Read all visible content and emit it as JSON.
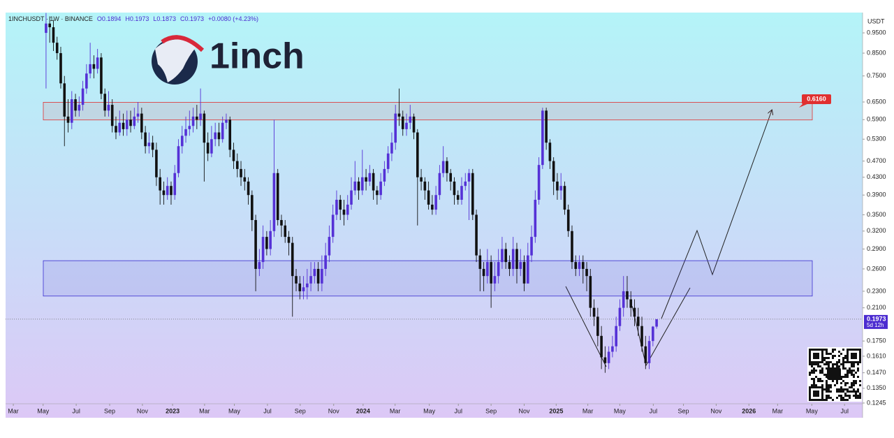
{
  "chart_data": {
    "type": "candlestick",
    "header": {
      "symbol": "1INCHUSDT · 1W · BINANCE",
      "ohlc": [
        "O0.1894",
        "H0.1973",
        "L0.1873",
        "C0.1973",
        "+0.0080 (+4.23%)"
      ]
    },
    "logo_text": "1inch",
    "currency": "USDT",
    "log_scale": true,
    "grid": false,
    "up_color": "#5531d6",
    "down_color": "#111111",
    "ylim": [
      0.124,
      1.062
    ],
    "yticks": [
      {
        "value": 0.95,
        "label": "0.9500"
      },
      {
        "value": 0.85,
        "label": "0.8500"
      },
      {
        "value": 0.75,
        "label": "0.7500"
      },
      {
        "value": 0.65,
        "label": "0.6500"
      },
      {
        "value": 0.59,
        "label": "0.5900"
      },
      {
        "value": 0.53,
        "label": "0.5300"
      },
      {
        "value": 0.47,
        "label": "0.4700"
      },
      {
        "value": 0.43,
        "label": "0.4300"
      },
      {
        "value": 0.39,
        "label": "0.3900"
      },
      {
        "value": 0.35,
        "label": "0.3500"
      },
      {
        "value": 0.32,
        "label": "0.3200"
      },
      {
        "value": 0.29,
        "label": "0.2900"
      },
      {
        "value": 0.26,
        "label": "0.2600"
      },
      {
        "value": 0.23,
        "label": "0.2300"
      },
      {
        "value": 0.21,
        "label": "0.2100"
      },
      {
        "value": 0.175,
        "label": "0.1750"
      },
      {
        "value": 0.161,
        "label": "0.1610"
      },
      {
        "value": 0.147,
        "label": "0.1470"
      },
      {
        "value": 0.135,
        "label": "0.1350"
      },
      {
        "value": 0.1245,
        "label": "0.1245"
      }
    ],
    "xlim": [
      0,
      233
    ],
    "xticks": [
      {
        "value": 2.1,
        "label": "Mar"
      },
      {
        "value": 10.2,
        "label": "May"
      },
      {
        "value": 19.2,
        "label": "Jul"
      },
      {
        "value": 28.3,
        "label": "Sep"
      },
      {
        "value": 37.2,
        "label": "Nov"
      },
      {
        "value": 45.4,
        "label": "2023"
      },
      {
        "value": 54.1,
        "label": "Mar"
      },
      {
        "value": 62.2,
        "label": "May"
      },
      {
        "value": 71.2,
        "label": "Jul"
      },
      {
        "value": 80.1,
        "label": "Sep"
      },
      {
        "value": 89.2,
        "label": "Nov"
      },
      {
        "value": 97.2,
        "label": "2024"
      },
      {
        "value": 105.9,
        "label": "Mar"
      },
      {
        "value": 115.2,
        "label": "May"
      },
      {
        "value": 123.1,
        "label": "Jul"
      },
      {
        "value": 132,
        "label": "Sep"
      },
      {
        "value": 141,
        "label": "Nov"
      },
      {
        "value": 149.7,
        "label": "2025"
      },
      {
        "value": 158.3,
        "label": "Mar"
      },
      {
        "value": 167,
        "label": "May"
      },
      {
        "value": 176.1,
        "label": "Jul"
      },
      {
        "value": 184.3,
        "label": "Sep"
      },
      {
        "value": 193.2,
        "label": "Nov"
      },
      {
        "value": 202.1,
        "label": "2026"
      },
      {
        "value": 209.9,
        "label": "Mar"
      },
      {
        "value": 219.2,
        "label": "May"
      },
      {
        "value": 228.1,
        "label": "Jul"
      }
    ],
    "x": [
      11,
      12,
      13,
      14,
      15,
      16,
      17,
      18,
      19,
      20,
      21,
      22,
      23,
      24,
      25,
      26,
      27,
      28,
      29,
      30,
      31,
      32,
      33,
      34,
      35,
      36,
      37,
      38,
      39,
      40,
      41,
      42,
      43,
      44,
      45,
      46,
      47,
      48,
      49,
      50,
      51,
      52,
      53,
      54,
      55,
      56,
      57,
      58,
      59,
      60,
      61,
      62,
      63,
      64,
      65,
      66,
      67,
      68,
      69,
      70,
      71,
      72,
      73,
      74,
      75,
      76,
      77,
      78,
      79,
      80,
      81,
      82,
      83,
      84,
      85,
      86,
      87,
      88,
      89,
      90,
      91,
      92,
      93,
      94,
      95,
      96,
      97,
      98,
      99,
      100,
      101,
      102,
      103,
      104,
      105,
      106,
      107,
      108,
      109,
      110,
      111,
      112,
      113,
      114,
      115,
      116,
      117,
      118,
      119,
      120,
      121,
      122,
      123,
      124,
      125,
      126,
      127,
      128,
      129,
      130,
      131,
      132,
      133,
      134,
      135,
      136,
      137,
      138,
      139,
      140,
      141,
      142,
      143,
      144,
      145,
      146,
      147,
      148,
      149,
      150,
      151,
      152,
      153,
      154,
      155,
      156,
      157,
      158,
      159,
      160,
      161,
      162,
      163,
      164,
      165,
      166,
      167,
      168,
      169,
      170,
      171,
      172,
      173,
      174,
      175,
      176,
      177
    ],
    "open": [
      0.95,
      1.0,
      0.98,
      0.9,
      0.85,
      0.72,
      0.6,
      0.58,
      0.66,
      0.62,
      0.64,
      0.7,
      0.76,
      0.8,
      0.78,
      0.83,
      0.68,
      0.62,
      0.64,
      0.57,
      0.55,
      0.58,
      0.56,
      0.59,
      0.57,
      0.6,
      0.61,
      0.55,
      0.51,
      0.52,
      0.5,
      0.43,
      0.4,
      0.39,
      0.41,
      0.39,
      0.44,
      0.51,
      0.54,
      0.56,
      0.57,
      0.6,
      0.59,
      0.61,
      0.52,
      0.49,
      0.53,
      0.55,
      0.53,
      0.58,
      0.59,
      0.5,
      0.47,
      0.45,
      0.43,
      0.42,
      0.39,
      0.34,
      0.26,
      0.27,
      0.31,
      0.29,
      0.32,
      0.44,
      0.34,
      0.33,
      0.31,
      0.3,
      0.25,
      0.24,
      0.23,
      0.235,
      0.24,
      0.25,
      0.26,
      0.24,
      0.26,
      0.28,
      0.31,
      0.35,
      0.38,
      0.36,
      0.35,
      0.37,
      0.4,
      0.42,
      0.4,
      0.43,
      0.42,
      0.44,
      0.4,
      0.39,
      0.42,
      0.45,
      0.49,
      0.52,
      0.61,
      0.6,
      0.56,
      0.58,
      0.6,
      0.55,
      0.43,
      0.42,
      0.4,
      0.37,
      0.36,
      0.39,
      0.44,
      0.47,
      0.44,
      0.42,
      0.39,
      0.38,
      0.41,
      0.42,
      0.44,
      0.35,
      0.28,
      0.26,
      0.25,
      0.27,
      0.24,
      0.25,
      0.27,
      0.29,
      0.27,
      0.26,
      0.29,
      0.26,
      0.27,
      0.24,
      0.28,
      0.31,
      0.38,
      0.46,
      0.62,
      0.52,
      0.47,
      0.42,
      0.4,
      0.41,
      0.36,
      0.32,
      0.27,
      0.26,
      0.27,
      0.26,
      0.25,
      0.21,
      0.2,
      0.18,
      0.16,
      0.155,
      0.165,
      0.17,
      0.19,
      0.21,
      0.23,
      0.22,
      0.21,
      0.2,
      0.19,
      0.17,
      0.155,
      0.175,
      0.1894
    ],
    "close": [
      1.0,
      0.98,
      0.9,
      0.85,
      0.72,
      0.6,
      0.58,
      0.66,
      0.62,
      0.64,
      0.7,
      0.76,
      0.8,
      0.78,
      0.83,
      0.68,
      0.62,
      0.64,
      0.57,
      0.55,
      0.58,
      0.56,
      0.59,
      0.57,
      0.6,
      0.61,
      0.55,
      0.51,
      0.52,
      0.5,
      0.43,
      0.4,
      0.39,
      0.41,
      0.39,
      0.44,
      0.51,
      0.54,
      0.56,
      0.57,
      0.6,
      0.59,
      0.61,
      0.52,
      0.49,
      0.53,
      0.55,
      0.53,
      0.58,
      0.59,
      0.5,
      0.47,
      0.45,
      0.43,
      0.42,
      0.39,
      0.34,
      0.26,
      0.27,
      0.31,
      0.29,
      0.32,
      0.44,
      0.34,
      0.33,
      0.31,
      0.3,
      0.25,
      0.24,
      0.23,
      0.235,
      0.24,
      0.25,
      0.26,
      0.24,
      0.26,
      0.28,
      0.31,
      0.35,
      0.38,
      0.36,
      0.35,
      0.37,
      0.4,
      0.42,
      0.4,
      0.43,
      0.42,
      0.44,
      0.4,
      0.39,
      0.42,
      0.45,
      0.49,
      0.52,
      0.61,
      0.6,
      0.56,
      0.58,
      0.6,
      0.55,
      0.43,
      0.42,
      0.4,
      0.37,
      0.36,
      0.39,
      0.44,
      0.47,
      0.44,
      0.42,
      0.39,
      0.38,
      0.41,
      0.42,
      0.44,
      0.35,
      0.28,
      0.26,
      0.25,
      0.27,
      0.24,
      0.25,
      0.27,
      0.29,
      0.27,
      0.26,
      0.29,
      0.26,
      0.27,
      0.24,
      0.28,
      0.31,
      0.38,
      0.46,
      0.62,
      0.52,
      0.47,
      0.42,
      0.4,
      0.41,
      0.36,
      0.32,
      0.27,
      0.26,
      0.27,
      0.26,
      0.25,
      0.21,
      0.2,
      0.18,
      0.16,
      0.155,
      0.165,
      0.17,
      0.19,
      0.21,
      0.23,
      0.22,
      0.21,
      0.2,
      0.19,
      0.17,
      0.155,
      0.175,
      0.1894,
      0.1973
    ],
    "high": [
      1.06,
      1.04,
      1.02,
      0.93,
      0.88,
      0.75,
      0.66,
      0.69,
      0.68,
      0.67,
      0.73,
      0.8,
      0.9,
      0.84,
      0.87,
      0.85,
      0.7,
      0.69,
      0.66,
      0.6,
      0.62,
      0.61,
      0.62,
      0.62,
      0.63,
      0.65,
      0.63,
      0.57,
      0.55,
      0.54,
      0.52,
      0.45,
      0.42,
      0.43,
      0.42,
      0.46,
      0.53,
      0.57,
      0.6,
      0.62,
      0.63,
      0.64,
      0.7,
      0.62,
      0.55,
      0.57,
      0.58,
      0.58,
      0.6,
      0.61,
      0.6,
      0.52,
      0.49,
      0.47,
      0.45,
      0.43,
      0.4,
      0.35,
      0.29,
      0.33,
      0.32,
      0.34,
      0.59,
      0.45,
      0.35,
      0.34,
      0.32,
      0.31,
      0.26,
      0.25,
      0.25,
      0.26,
      0.27,
      0.27,
      0.27,
      0.28,
      0.3,
      0.33,
      0.37,
      0.4,
      0.39,
      0.38,
      0.39,
      0.43,
      0.47,
      0.43,
      0.5,
      0.45,
      0.46,
      0.45,
      0.41,
      0.44,
      0.47,
      0.51,
      0.55,
      0.64,
      0.7,
      0.62,
      0.61,
      0.64,
      0.61,
      0.56,
      0.45,
      0.43,
      0.42,
      0.39,
      0.41,
      0.46,
      0.51,
      0.48,
      0.45,
      0.43,
      0.4,
      0.43,
      0.44,
      0.45,
      0.45,
      0.36,
      0.29,
      0.27,
      0.29,
      0.28,
      0.27,
      0.29,
      0.31,
      0.3,
      0.28,
      0.31,
      0.3,
      0.29,
      0.28,
      0.3,
      0.33,
      0.4,
      0.48,
      0.63,
      0.63,
      0.53,
      0.48,
      0.44,
      0.44,
      0.42,
      0.37,
      0.33,
      0.28,
      0.28,
      0.28,
      0.27,
      0.26,
      0.22,
      0.21,
      0.19,
      0.17,
      0.17,
      0.18,
      0.2,
      0.22,
      0.25,
      0.25,
      0.23,
      0.22,
      0.21,
      0.2,
      0.18,
      0.18,
      0.19,
      0.1973
    ],
    "low": [
      0.7,
      0.9,
      0.86,
      0.82,
      0.7,
      0.51,
      0.55,
      0.56,
      0.6,
      0.6,
      0.62,
      0.68,
      0.74,
      0.74,
      0.76,
      0.66,
      0.6,
      0.6,
      0.55,
      0.53,
      0.54,
      0.54,
      0.54,
      0.55,
      0.56,
      0.58,
      0.53,
      0.49,
      0.49,
      0.48,
      0.41,
      0.37,
      0.37,
      0.38,
      0.37,
      0.38,
      0.43,
      0.49,
      0.52,
      0.54,
      0.55,
      0.56,
      0.57,
      0.42,
      0.47,
      0.48,
      0.51,
      0.51,
      0.52,
      0.56,
      0.48,
      0.45,
      0.43,
      0.41,
      0.4,
      0.37,
      0.32,
      0.23,
      0.25,
      0.26,
      0.28,
      0.28,
      0.31,
      0.33,
      0.31,
      0.3,
      0.28,
      0.2,
      0.23,
      0.22,
      0.22,
      0.22,
      0.23,
      0.24,
      0.23,
      0.23,
      0.25,
      0.27,
      0.3,
      0.34,
      0.34,
      0.33,
      0.34,
      0.36,
      0.39,
      0.38,
      0.39,
      0.4,
      0.41,
      0.38,
      0.37,
      0.38,
      0.41,
      0.44,
      0.47,
      0.5,
      0.57,
      0.54,
      0.54,
      0.56,
      0.53,
      0.33,
      0.4,
      0.38,
      0.36,
      0.35,
      0.35,
      0.38,
      0.43,
      0.42,
      0.4,
      0.37,
      0.37,
      0.37,
      0.4,
      0.34,
      0.34,
      0.27,
      0.23,
      0.23,
      0.24,
      0.21,
      0.23,
      0.24,
      0.26,
      0.26,
      0.25,
      0.25,
      0.24,
      0.25,
      0.23,
      0.24,
      0.27,
      0.3,
      0.37,
      0.45,
      0.5,
      0.45,
      0.39,
      0.38,
      0.38,
      0.35,
      0.31,
      0.26,
      0.25,
      0.25,
      0.24,
      0.23,
      0.2,
      0.19,
      0.17,
      0.15,
      0.147,
      0.15,
      0.16,
      0.165,
      0.185,
      0.2,
      0.21,
      0.2,
      0.19,
      0.18,
      0.165,
      0.15,
      0.15,
      0.17,
      0.1873
    ],
    "zones": [
      {
        "low": 0.589,
        "high": 0.649,
        "color": "#e03030"
      },
      {
        "low": 0.224,
        "high": 0.272,
        "color": "#3b2fd0"
      }
    ],
    "target": {
      "value": 0.616,
      "label": "0.6160"
    },
    "last_price": {
      "value": 0.1973,
      "label": "0.1973"
    },
    "countdown": "5d 12h"
  }
}
